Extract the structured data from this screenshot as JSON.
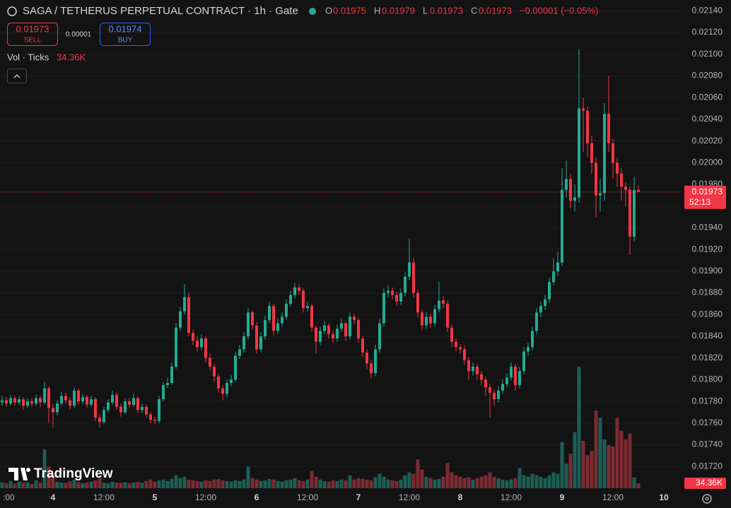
{
  "chart_data": {
    "type": "candlestick",
    "title": "SAGA / TETHERUS PERPETUAL CONTRACT · 1h · Gate",
    "ohlc_keys": [
      "O",
      "H",
      "L",
      "C"
    ],
    "change": "−0.00001 (−0.05%)",
    "countdown": "52:13",
    "volume_indicator": "Vol · Ticks",
    "categories": [
      ":00",
      null,
      null,
      null,
      null,
      null,
      null,
      null,
      null,
      null,
      null,
      null,
      "4",
      null,
      null,
      null,
      null,
      null,
      null,
      null,
      null,
      null,
      null,
      null,
      "12:00",
      null,
      null,
      null,
      null,
      null,
      null,
      null,
      null,
      null,
      null,
      null,
      "5",
      null,
      null,
      null,
      null,
      null,
      null,
      null,
      null,
      null,
      null,
      null,
      "12:00",
      null,
      null,
      null,
      null,
      null,
      null,
      null,
      null,
      null,
      null,
      null,
      "6",
      null,
      null,
      null,
      null,
      null,
      null,
      null,
      null,
      null,
      null,
      null,
      "12:00",
      null,
      null,
      null,
      null,
      null,
      null,
      null,
      null,
      null,
      null,
      null,
      "7",
      null,
      null,
      null,
      null,
      null,
      null,
      null,
      null,
      null,
      null,
      null,
      "12:00",
      null,
      null,
      null,
      null,
      null,
      null,
      null,
      null,
      null,
      null,
      null,
      "8",
      null,
      null,
      null,
      null,
      null,
      null,
      null,
      null,
      null,
      null,
      null,
      "12:00",
      null,
      null,
      null,
      null,
      null,
      null,
      null,
      null,
      null,
      null,
      null,
      "9",
      null,
      null,
      null,
      null,
      null,
      null,
      null,
      null,
      null,
      null,
      null,
      "12:00",
      null,
      null,
      null,
      null,
      null,
      null,
      null,
      null,
      null,
      null,
      null,
      "10"
    ],
    "open": [
      0.01779,
      0.01781,
      0.01778,
      0.01783,
      0.01779,
      0.01782,
      0.01776,
      0.0178,
      0.01778,
      0.01783,
      0.01779,
      0.01792,
      0.01774,
      0.0177,
      0.01778,
      0.01785,
      0.01781,
      0.01776,
      0.0179,
      0.0178,
      0.01784,
      0.01777,
      0.01782,
      0.01765,
      0.01761,
      0.01772,
      0.01779,
      0.01786,
      0.01775,
      0.0177,
      0.0178,
      0.01777,
      0.01783,
      0.01772,
      0.01775,
      0.01768,
      0.01763,
      0.01762,
      0.01782,
      0.01795,
      0.01797,
      0.01812,
      0.01848,
      0.01863,
      0.01876,
      0.01843,
      0.01836,
      0.0183,
      0.01838,
      0.0182,
      0.01812,
      0.01803,
      0.01792,
      0.01787,
      0.01797,
      0.018,
      0.01822,
      0.01828,
      0.0184,
      0.01862,
      0.0185,
      0.01828,
      0.0184,
      0.01855,
      0.01868,
      0.01845,
      0.01852,
      0.01858,
      0.0187,
      0.01878,
      0.01885,
      0.01882,
      0.01866,
      0.01868,
      0.01848,
      0.01835,
      0.01845,
      0.0185,
      0.01842,
      0.01838,
      0.01847,
      0.01852,
      0.0184,
      0.01858,
      0.01855,
      0.01838,
      0.01825,
      0.01815,
      0.01806,
      0.01828,
      0.01852,
      0.0188,
      0.01882,
      0.01878,
      0.01872,
      0.0188,
      0.01895,
      0.01908,
      0.0188,
      0.01862,
      0.0185,
      0.01858,
      0.01852,
      0.01865,
      0.01873,
      0.0187,
      0.01848,
      0.01835,
      0.0183,
      0.01828,
      0.01818,
      0.01808,
      0.01812,
      0.01805,
      0.018,
      0.01793,
      0.01788,
      0.01782,
      0.0179,
      0.01796,
      0.01802,
      0.01812,
      0.01795,
      0.01808,
      0.01826,
      0.0183,
      0.01845,
      0.01862,
      0.01868,
      0.01874,
      0.0189,
      0.019,
      0.01908,
      0.01975,
      0.01985,
      0.01965,
      0.01968,
      0.0205,
      0.02048,
      0.02018,
      0.02,
      0.0197,
      0.01972,
      0.02045,
      0.02018,
      0.02,
      0.0199,
      0.01978,
      0.01975,
      0.01932,
      0.01975,
      null,
      null,
      null,
      null,
      null,
      null
    ],
    "high": [
      0.01785,
      0.01784,
      0.01786,
      0.01785,
      0.01785,
      0.01784,
      0.01783,
      0.01783,
      0.01786,
      0.01785,
      0.01798,
      0.01794,
      0.01778,
      0.01781,
      0.01789,
      0.01788,
      0.01784,
      0.01793,
      0.01792,
      0.01787,
      0.01786,
      0.01785,
      0.01784,
      0.01768,
      0.01775,
      0.01782,
      0.0179,
      0.01788,
      0.01778,
      0.01783,
      0.01783,
      0.01787,
      0.01785,
      0.01778,
      0.01777,
      0.0177,
      0.01766,
      0.01785,
      0.01798,
      0.01802,
      0.01816,
      0.01852,
      0.01867,
      0.01888,
      0.0188,
      0.01846,
      0.0184,
      0.01842,
      0.0184,
      0.01824,
      0.01815,
      0.01806,
      0.01795,
      0.018,
      0.01804,
      0.01826,
      0.01832,
      0.01844,
      0.01866,
      0.01864,
      0.01853,
      0.01844,
      0.01859,
      0.01872,
      0.0187,
      0.01856,
      0.01862,
      0.01874,
      0.01882,
      0.01889,
      0.01888,
      0.01884,
      0.01872,
      0.0187,
      0.0185,
      0.01849,
      0.01854,
      0.01852,
      0.01845,
      0.01851,
      0.01856,
      0.01854,
      0.01862,
      0.01861,
      0.01857,
      0.0184,
      0.01828,
      0.01818,
      0.01832,
      0.01856,
      0.01884,
      0.01887,
      0.01885,
      0.01881,
      0.01884,
      0.01899,
      0.0193,
      0.01912,
      0.01883,
      0.01865,
      0.01862,
      0.01861,
      0.01869,
      0.0189,
      0.01877,
      0.01873,
      0.01851,
      0.01838,
      0.01833,
      0.01831,
      0.01821,
      0.01816,
      0.01815,
      0.01808,
      0.01803,
      0.01796,
      0.01791,
      0.01794,
      0.018,
      0.01806,
      0.01816,
      0.01815,
      0.01812,
      0.0183,
      0.01834,
      0.01849,
      0.01866,
      0.01872,
      0.01878,
      0.01894,
      0.01912,
      0.01918,
      0.01995,
      0.02002,
      0.0199,
      0.0198,
      0.02105,
      0.0206,
      0.02052,
      0.02025,
      0.02005,
      0.01985,
      0.02055,
      0.0208,
      0.02022,
      0.02005,
      0.01995,
      0.01982,
      0.01978,
      0.01987,
      0.01979,
      null,
      null,
      null,
      null,
      null,
      null
    ],
    "low": [
      0.01776,
      0.01775,
      0.01776,
      0.01776,
      0.01777,
      0.01772,
      0.01774,
      0.01775,
      0.01776,
      0.01775,
      0.01777,
      0.0176,
      0.01756,
      0.01767,
      0.01776,
      0.01778,
      0.01773,
      0.01774,
      0.01777,
      0.01777,
      0.01774,
      0.01775,
      0.01762,
      0.01756,
      0.01759,
      0.0177,
      0.01777,
      0.01772,
      0.01766,
      0.01768,
      0.01774,
      0.01775,
      0.01769,
      0.01769,
      0.01765,
      0.0176,
      0.01759,
      0.0176,
      0.0178,
      0.01792,
      0.01795,
      0.0181,
      0.01845,
      0.0186,
      0.0184,
      0.01832,
      0.01826,
      0.01827,
      0.01816,
      0.01808,
      0.01798,
      0.01788,
      0.01781,
      0.01784,
      0.01794,
      0.01798,
      0.01819,
      0.01825,
      0.01837,
      0.01846,
      0.01824,
      0.01825,
      0.01837,
      0.01852,
      0.01841,
      0.01842,
      0.01849,
      0.01855,
      0.01867,
      0.01875,
      0.01878,
      0.01862,
      0.01863,
      0.01844,
      0.01824,
      0.01832,
      0.01842,
      0.01838,
      0.01834,
      0.01835,
      0.01844,
      0.01836,
      0.01837,
      0.01851,
      0.01834,
      0.01821,
      0.0181,
      0.01801,
      0.01803,
      0.01825,
      0.01849,
      0.01876,
      0.01874,
      0.01868,
      0.01869,
      0.01877,
      0.01892,
      0.01876,
      0.01857,
      0.01845,
      0.01847,
      0.01848,
      0.01849,
      0.01862,
      0.01866,
      0.01844,
      0.0183,
      0.01826,
      0.01824,
      0.01814,
      0.018,
      0.01804,
      0.018,
      0.01795,
      0.01785,
      0.01765,
      0.01776,
      0.01779,
      0.01787,
      0.01793,
      0.01799,
      0.0179,
      0.01792,
      0.01805,
      0.01822,
      0.01827,
      0.01842,
      0.01858,
      0.01864,
      0.01871,
      0.01887,
      0.01896,
      0.01905,
      0.01968,
      0.01958,
      0.01955,
      0.01963,
      0.0201,
      0.02005,
      0.0199,
      0.0195,
      0.01955,
      0.01965,
      0.0201,
      0.01985,
      0.01978,
      0.01965,
      0.0196,
      0.01915,
      0.01928,
      0.01973,
      null,
      null,
      null,
      null,
      null,
      null
    ],
    "close": [
      0.01781,
      0.01778,
      0.01783,
      0.01779,
      0.01782,
      0.01776,
      0.0178,
      0.01778,
      0.01783,
      0.01779,
      0.01792,
      0.01774,
      0.0177,
      0.01778,
      0.01785,
      0.01781,
      0.01776,
      0.0179,
      0.0178,
      0.01784,
      0.01777,
      0.01782,
      0.01765,
      0.01761,
      0.01772,
      0.01779,
      0.01786,
      0.01775,
      0.0177,
      0.0178,
      0.01777,
      0.01783,
      0.01772,
      0.01775,
      0.01768,
      0.01763,
      0.01762,
      0.01782,
      0.01795,
      0.01797,
      0.01812,
      0.01848,
      0.01863,
      0.01876,
      0.01843,
      0.01836,
      0.0183,
      0.01838,
      0.0182,
      0.01812,
      0.01803,
      0.01792,
      0.01787,
      0.01797,
      0.018,
      0.01822,
      0.01828,
      0.0184,
      0.01862,
      0.0185,
      0.01828,
      0.0184,
      0.01855,
      0.01868,
      0.01845,
      0.01852,
      0.01858,
      0.0187,
      0.01878,
      0.01885,
      0.01882,
      0.01866,
      0.01868,
      0.01848,
      0.01835,
      0.01845,
      0.0185,
      0.01842,
      0.01838,
      0.01847,
      0.01852,
      0.0184,
      0.01858,
      0.01855,
      0.01838,
      0.01825,
      0.01815,
      0.01806,
      0.01828,
      0.01852,
      0.0188,
      0.01882,
      0.01878,
      0.01872,
      0.0188,
      0.01895,
      0.01908,
      0.0188,
      0.01862,
      0.0185,
      0.01858,
      0.01852,
      0.01865,
      0.01873,
      0.0187,
      0.01848,
      0.01835,
      0.0183,
      0.01828,
      0.01818,
      0.01808,
      0.01812,
      0.01805,
      0.018,
      0.01793,
      0.01788,
      0.01782,
      0.0179,
      0.01796,
      0.01802,
      0.01812,
      0.01795,
      0.01808,
      0.01826,
      0.0183,
      0.01845,
      0.01862,
      0.01868,
      0.01874,
      0.0189,
      0.019,
      0.01908,
      0.01975,
      0.01985,
      0.01965,
      0.01968,
      0.0205,
      0.02048,
      0.02018,
      0.02,
      0.0197,
      0.01972,
      0.02045,
      0.02018,
      0.02,
      0.0199,
      0.01978,
      0.01975,
      0.01932,
      0.01975,
      0.01973,
      null,
      null,
      null,
      null,
      null,
      null
    ],
    "volume": [
      40000,
      35000,
      50000,
      30000,
      45000,
      38000,
      42000,
      30000,
      55000,
      40000,
      270000,
      150000,
      90000,
      45000,
      40000,
      38000,
      50000,
      60000,
      42000,
      35000,
      40000,
      45000,
      55000,
      70000,
      40000,
      35000,
      45000,
      40000,
      38000,
      42000,
      36000,
      40000,
      45000,
      38000,
      50000,
      60000,
      45000,
      55000,
      60000,
      50000,
      65000,
      90000,
      70000,
      80000,
      60000,
      55000,
      50000,
      45000,
      55000,
      50000,
      60000,
      65000,
      55000,
      50000,
      45000,
      55000,
      50000,
      60000,
      150000,
      70000,
      60000,
      50000,
      55000,
      65000,
      60000,
      50000,
      45000,
      55000,
      60000,
      70000,
      55000,
      50000,
      60000,
      120000,
      80000,
      60000,
      50000,
      45000,
      55000,
      50000,
      60000,
      55000,
      90000,
      60000,
      70000,
      65000,
      60000,
      55000,
      75000,
      100000,
      80000,
      60000,
      55000,
      50000,
      60000,
      90000,
      110000,
      100000,
      200000,
      130000,
      80000,
      70000,
      60000,
      65000,
      80000,
      175000,
      110000,
      90000,
      80000,
      70000,
      75000,
      60000,
      70000,
      80000,
      90000,
      110000,
      80000,
      70000,
      60000,
      55000,
      60000,
      70000,
      140000,
      90000,
      80000,
      100000,
      90000,
      80000,
      70000,
      90000,
      110000,
      100000,
      320000,
      170000,
      240000,
      390000,
      845000,
      330000,
      230000,
      260000,
      540000,
      490000,
      340000,
      300000,
      290000,
      490000,
      400000,
      340000,
      380000,
      75000,
      34360,
      null,
      null,
      null,
      null,
      null,
      null
    ],
    "volume_labels": [
      null,
      null,
      null,
      null,
      null,
      null,
      null,
      null,
      null,
      null,
      null,
      null,
      null,
      null,
      null,
      null,
      null,
      null,
      null,
      null,
      null,
      null,
      null,
      null,
      null,
      null,
      null,
      null,
      null,
      null,
      null,
      null,
      null,
      null,
      null,
      null,
      null,
      null,
      null,
      null,
      null,
      null,
      null,
      null,
      null,
      null,
      null,
      null,
      null,
      null,
      null,
      null,
      null,
      null,
      null,
      null,
      null,
      null,
      null,
      null,
      null,
      null,
      null,
      null,
      null,
      null,
      null,
      null,
      null,
      null,
      null,
      null,
      null,
      null,
      null,
      null,
      null,
      null,
      null,
      null,
      null,
      null,
      null,
      null,
      null,
      null,
      null,
      null,
      null,
      null,
      null,
      null,
      null,
      null,
      null,
      null,
      null,
      null,
      null,
      null,
      null,
      null,
      null,
      null,
      null,
      null,
      null,
      null,
      null,
      null,
      null,
      null,
      null,
      null,
      null,
      null,
      null,
      null,
      null,
      null,
      null,
      null,
      null,
      null,
      null,
      null,
      null,
      null,
      null,
      null,
      null,
      null,
      null,
      null,
      null,
      null,
      null,
      null,
      null,
      null,
      null,
      null,
      null,
      null,
      null,
      null,
      null,
      null,
      null,
      null,
      "34.36K",
      null,
      null,
      null,
      null,
      null,
      null
    ],
    "up_color": "#22ab94",
    "down_color": "#f23645",
    "volume_up_color": "#1d5e56",
    "volume_down_color": "#7c2b31",
    "ylim": [
      0.01698,
      0.0215
    ],
    "yticks": [
      {
        "value": 0.0214,
        "label": "0.02140"
      },
      {
        "value": 0.0212,
        "label": "0.02120"
      },
      {
        "value": 0.021,
        "label": "0.02100"
      },
      {
        "value": 0.0208,
        "label": "0.02080"
      },
      {
        "value": 0.0206,
        "label": "0.02060"
      },
      {
        "value": 0.0204,
        "label": "0.02040"
      },
      {
        "value": 0.0202,
        "label": "0.02020"
      },
      {
        "value": 0.02,
        "label": "0.02000"
      },
      {
        "value": 0.0198,
        "label": "0.01980"
      },
      {
        "value": 0.0196,
        "label": "0.01960"
      },
      {
        "value": 0.0194,
        "label": "0.01940"
      },
      {
        "value": 0.0192,
        "label": "0.01920"
      },
      {
        "value": 0.019,
        "label": "0.01900"
      },
      {
        "value": 0.0188,
        "label": "0.01880"
      },
      {
        "value": 0.0186,
        "label": "0.01860"
      },
      {
        "value": 0.0184,
        "label": "0.01840"
      },
      {
        "value": 0.0182,
        "label": "0.01820"
      },
      {
        "value": 0.018,
        "label": "0.01800"
      },
      {
        "value": 0.0178,
        "label": "0.01780"
      },
      {
        "value": 0.0176,
        "label": "0.01760"
      },
      {
        "value": 0.0174,
        "label": "0.01740"
      },
      {
        "value": 0.0172,
        "label": "0.01720"
      }
    ],
    "grid": true
  },
  "trade_panel": {
    "sell_price": "0.01973",
    "sell_label": "SELL",
    "spread": "0.00001",
    "buy_price": "0.01974",
    "buy_label": "BUY"
  },
  "branding": "TradingView"
}
